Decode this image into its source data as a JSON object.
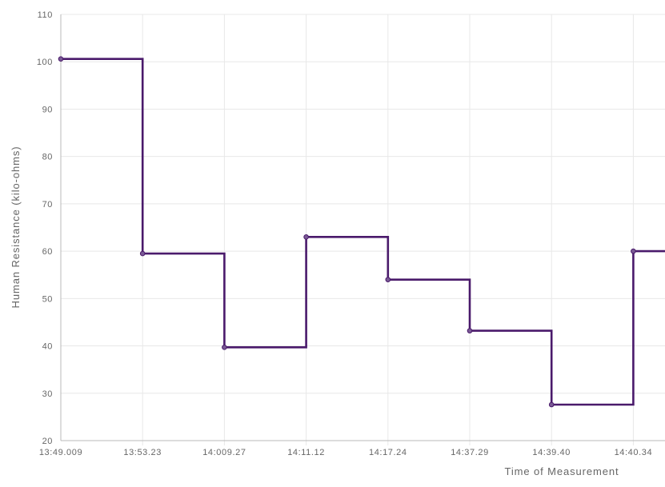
{
  "chart_data": {
    "type": "line",
    "subtype": "stepped",
    "xlabel": "Time of Measurement",
    "ylabel": "Human Resistance (kilo-ohms)",
    "categories": [
      "13:49.009",
      "13:53.23",
      "14:009.27",
      "14:11.12",
      "14:17.24",
      "14:37.29",
      "14:39.40",
      "14:40.34"
    ],
    "series": [
      {
        "values": [
          100.6,
          59.5,
          39.7,
          63.0,
          54.0,
          43.2,
          27.6,
          60.0
        ],
        "color": "#4a1a6b"
      }
    ],
    "ylim": [
      20,
      110
    ],
    "yticks": [
      "20",
      "30",
      "40",
      "50",
      "60",
      "70",
      "80",
      "90",
      "100",
      "110"
    ],
    "grid": true,
    "legend": "none"
  }
}
